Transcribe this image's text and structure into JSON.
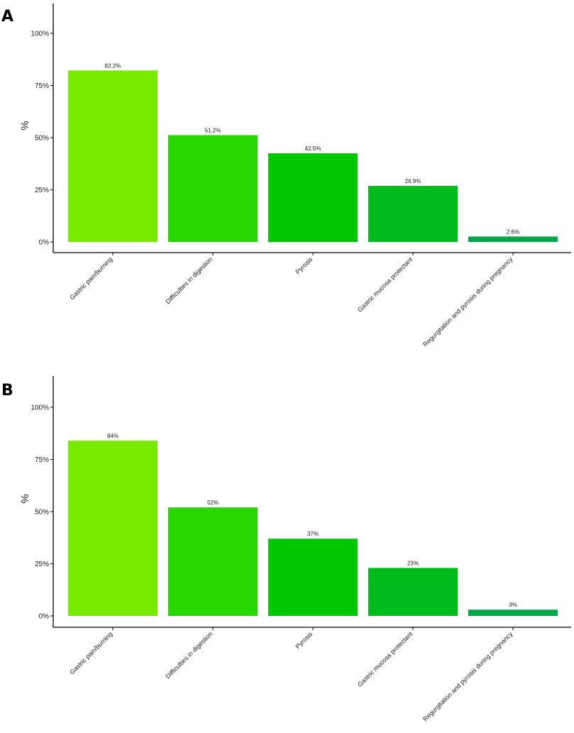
{
  "chart_data": [
    {
      "panel_label": "A",
      "type": "bar",
      "ylabel": "%",
      "xlabel": "",
      "ylim": [
        0,
        115
      ],
      "yticks": [
        0,
        25,
        50,
        75,
        100
      ],
      "ytick_labels": [
        "0%",
        "25%",
        "50%",
        "75%",
        "100%"
      ],
      "categories": [
        "Gastric pain/burning",
        "Difficulties in digestion",
        "Pyrosis",
        "Gastric mucosa protectant",
        "Regurgitation and pyrosis during pregnancy"
      ],
      "values": [
        82.2,
        51.2,
        42.5,
        26.9,
        2.6
      ],
      "value_labels": [
        "82.2%",
        "51.2%",
        "42.5%",
        "26.9%",
        "2.6%"
      ],
      "colors": [
        "#77ea00",
        "#29d700",
        "#00c800",
        "#00bd1d",
        "#00a84a"
      ],
      "grid": false,
      "legend": "none"
    },
    {
      "panel_label": "B",
      "type": "bar",
      "ylabel": "%",
      "xlabel": "",
      "ylim": [
        0,
        115
      ],
      "yticks": [
        0,
        25,
        50,
        75,
        100
      ],
      "ytick_labels": [
        "0%",
        "25%",
        "50%",
        "75%",
        "100%"
      ],
      "categories": [
        "Gastric pain/burning",
        "Difficulties in digestion",
        "Pyrosis",
        "Gastric mucosa protectant",
        "Regurgitation and pyrosis during pregnancy"
      ],
      "values": [
        84,
        52,
        37,
        23,
        3
      ],
      "value_labels": [
        "84%",
        "52%",
        "37%",
        "23%",
        "3%"
      ],
      "colors": [
        "#77ea00",
        "#29d700",
        "#00c800",
        "#00bd1d",
        "#00a84a"
      ],
      "grid": false,
      "legend": "none"
    }
  ]
}
